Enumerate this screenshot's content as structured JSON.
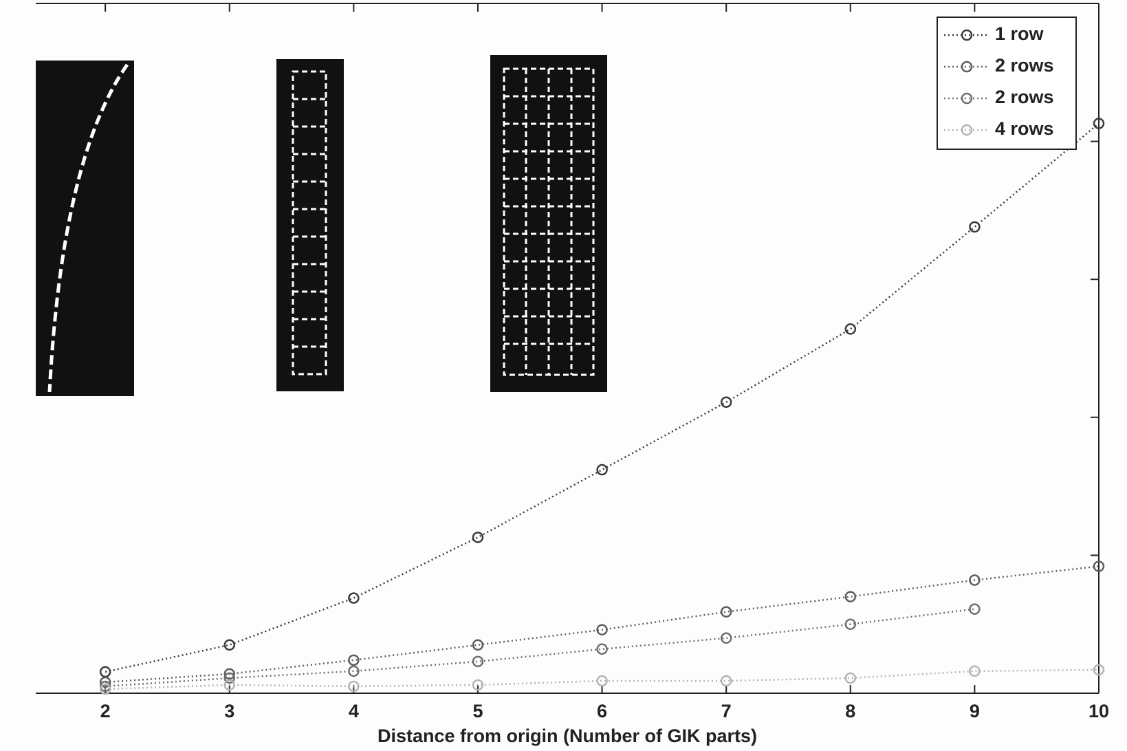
{
  "chart_data": {
    "type": "line",
    "xlabel": "Distance from origin (Number of GIK parts)",
    "x": [
      2,
      3,
      4,
      5,
      6,
      7,
      8,
      9,
      10
    ],
    "series": [
      {
        "name": "1 row",
        "color": "#3a3a3a",
        "values": [
          0.155,
          0.35,
          0.69,
          1.13,
          1.62,
          2.11,
          2.64,
          3.38,
          4.13
        ]
      },
      {
        "name": "2 rows",
        "color": "#5e5e5e",
        "values": [
          0.08,
          0.14,
          0.24,
          0.35,
          0.46,
          0.59,
          0.7,
          0.82,
          0.92
        ]
      },
      {
        "name": "2 rows",
        "color": "#6e6e6e",
        "values": [
          0.05,
          0.11,
          0.16,
          0.23,
          0.32,
          0.4,
          0.5,
          0.61,
          null
        ]
      },
      {
        "name": "4 rows",
        "color": "#b4b4b4",
        "values": [
          0.03,
          0.06,
          0.05,
          0.06,
          0.09,
          0.09,
          0.11,
          0.16,
          0.17
        ]
      }
    ],
    "xlim": [
      1.44,
      10
    ],
    "xticks": [
      2,
      3,
      4,
      5,
      6,
      7,
      8,
      9,
      10
    ],
    "ylim": [
      0,
      5
    ],
    "yticks": [
      1,
      2,
      3,
      4
    ],
    "legend": "upper right"
  }
}
